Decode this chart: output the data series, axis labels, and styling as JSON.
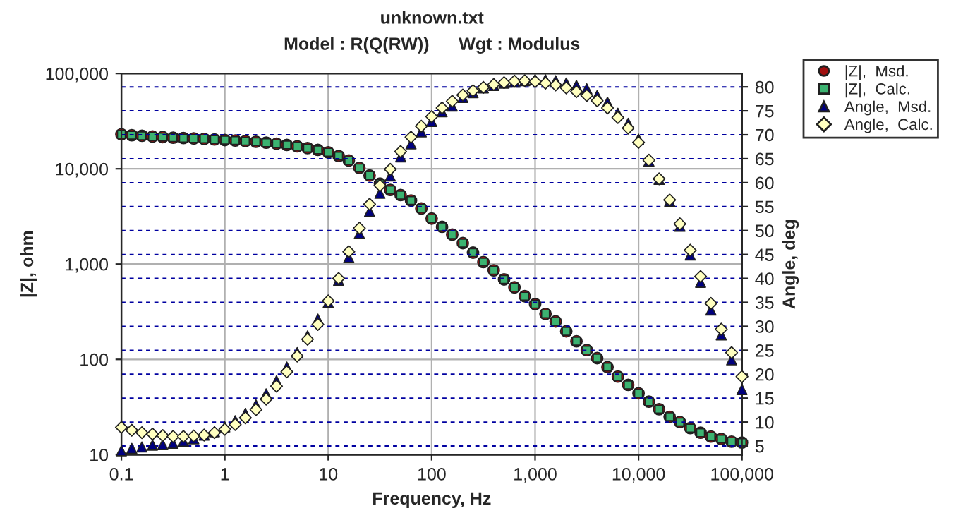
{
  "chart_data": {
    "type": "scatter",
    "title": "unknown.txt",
    "subtitle": "Model : R(Q(RW))      Wgt : Modulus",
    "xlabel": "Frequency, Hz",
    "ylabel": "|Z|, ohm",
    "y2label": "Angle, deg",
    "x": [
      0.1,
      0.126,
      0.158,
      0.2,
      0.251,
      0.316,
      0.398,
      0.501,
      0.631,
      0.794,
      1,
      1.26,
      1.58,
      2,
      2.51,
      3.16,
      3.98,
      5.01,
      6.31,
      7.94,
      10,
      12.6,
      15.8,
      20,
      25.1,
      31.6,
      39.8,
      50.1,
      63.1,
      79.4,
      100,
      126,
      158,
      200,
      251,
      316,
      398,
      501,
      631,
      794,
      1000,
      1260,
      1580,
      2000,
      2510,
      3160,
      3980,
      5010,
      6310,
      7940,
      10000,
      12600,
      15800,
      20000,
      25100,
      31600,
      39800,
      50100,
      63100,
      79400,
      100000
    ],
    "series": [
      {
        "name": "|Z|,  Msd.",
        "color": "#a01010",
        "marker": "circle",
        "values": [
          23000,
          22500,
          22200,
          21800,
          21500,
          21200,
          21000,
          20800,
          20600,
          20300,
          20000,
          19800,
          19500,
          19200,
          18800,
          18300,
          17800,
          17200,
          16500,
          15800,
          14900,
          13600,
          12200,
          10200,
          8500,
          7000,
          6000,
          5300,
          4650,
          3830,
          3000,
          2460,
          2040,
          1660,
          1320,
          1050,
          860,
          690,
          570,
          460,
          380,
          300,
          250,
          197,
          155,
          125,
          103,
          83,
          66,
          54,
          44,
          36,
          30,
          25,
          22,
          19,
          17,
          15.5,
          14.6,
          13.7,
          13.4
        ]
      },
      {
        "name": "|Z|,  Calc.",
        "color": "#3cb371",
        "marker": "square",
        "values": [
          23000,
          22500,
          22200,
          21800,
          21500,
          21200,
          21000,
          20800,
          20600,
          20300,
          20000,
          19800,
          19500,
          19200,
          18800,
          18300,
          17800,
          17200,
          16500,
          15800,
          14900,
          13600,
          12200,
          10200,
          8500,
          7000,
          6000,
          5300,
          4650,
          3830,
          3000,
          2460,
          2040,
          1660,
          1320,
          1050,
          860,
          690,
          570,
          460,
          380,
          300,
          250,
          197,
          155,
          125,
          103,
          83,
          66,
          54,
          44,
          36,
          30,
          25,
          22,
          19,
          17,
          15.5,
          14.6,
          13.7,
          13.4
        ]
      },
      {
        "name": "Angle,  Msd.",
        "color": "#00007f",
        "marker": "triangle",
        "axis": "y2",
        "values": [
          4,
          4.5,
          4.8,
          5.2,
          5.3,
          5.6,
          6,
          6.5,
          7.3,
          8,
          9,
          10.3,
          11.8,
          13.6,
          15.9,
          18.6,
          21.5,
          24.5,
          28,
          31.5,
          35,
          39.6,
          44.4,
          49.4,
          54,
          57.8,
          61.4,
          65.4,
          68.1,
          70.6,
          72.8,
          74.8,
          76,
          77.8,
          78.8,
          79.8,
          80.3,
          80.8,
          81,
          81.3,
          81.5,
          81.5,
          81.3,
          80.8,
          80.3,
          79.6,
          78.2,
          76.8,
          74.5,
          72.4,
          69.1,
          64.5,
          60.7,
          56.1,
          50.9,
          44.9,
          39.2,
          33.4,
          28.2,
          23,
          16.8
        ]
      },
      {
        "name": "Angle,  Calc.",
        "color": "#ffffc0",
        "marker": "diamond",
        "axis": "y2",
        "values": [
          8.9,
          8.3,
          7.8,
          7.5,
          7.2,
          7,
          7,
          7.1,
          7.3,
          7.8,
          8.5,
          9.5,
          10.9,
          12.6,
          14.8,
          17.5,
          20.5,
          23.8,
          27.3,
          30.4,
          35.3,
          40,
          45.6,
          50.5,
          55.5,
          59.4,
          62.8,
          66.5,
          69.5,
          71.8,
          73.8,
          75.6,
          77,
          78.3,
          79.2,
          79.9,
          80.5,
          80.9,
          81.2,
          81.3,
          81.1,
          80.8,
          80.4,
          79.8,
          79,
          78.2,
          77.1,
          75.6,
          73.6,
          71.4,
          68.4,
          64.7,
          60.8,
          56.4,
          51.4,
          45.9,
          40.4,
          34.8,
          29.4,
          24.5,
          19.5
        ]
      }
    ],
    "log": "xy",
    "xlim": [
      0.1,
      100000
    ],
    "ylim": [
      10,
      100000
    ],
    "y2lim": [
      3.2,
      82.8
    ],
    "xticks": [
      0.1,
      1,
      10,
      100,
      {
        "value": 1000,
        "label": "1,000"
      },
      {
        "value": 10000,
        "label": "10,000"
      },
      {
        "value": 100000,
        "label": "100,000"
      }
    ],
    "yticks": [
      10,
      100,
      {
        "value": 1000,
        "label": "1,000"
      },
      {
        "value": 10000,
        "label": "10,000"
      },
      {
        "value": 100000,
        "label": "100,000"
      }
    ],
    "y2ticks": [
      5,
      10,
      15,
      20,
      25,
      30,
      35,
      40,
      45,
      50,
      55,
      60,
      65,
      70,
      75,
      80
    ],
    "grid": true,
    "legend": "top right"
  }
}
